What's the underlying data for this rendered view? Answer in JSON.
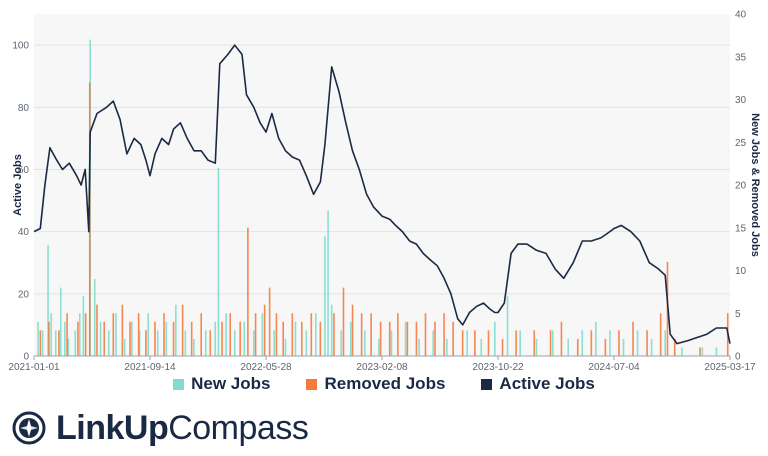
{
  "chart_data": {
    "type": "bar+line",
    "x_range": [
      "2021-01-01",
      "2025-03-17"
    ],
    "x_tick_labels": [
      "2021-01-01",
      "2021-09-14",
      "2022-05-28",
      "2023-02-08",
      "2023-10-22",
      "2024-07-04",
      "2025-03-17"
    ],
    "y_left": {
      "label": "Active Jobs",
      "ylim": [
        0,
        110
      ],
      "ticks": [
        0,
        20,
        40,
        60,
        80,
        100
      ]
    },
    "y_right": {
      "label": "New Jobs & Removed Jobs",
      "ylim": [
        0,
        40
      ],
      "ticks": [
        0,
        5,
        10,
        15,
        20,
        25,
        30,
        35,
        40
      ]
    },
    "grid": true,
    "legend_position": "bottom",
    "colors": {
      "new": "#7fdcce",
      "removed": "#f47a3d",
      "active": "#1b2a44",
      "grid": "#e3e3e3",
      "background": "#f7f7f7"
    },
    "series": [
      {
        "name": "Active Jobs",
        "kind": "line",
        "axis": "left",
        "points": [
          [
            "2021-01-01",
            40
          ],
          [
            "2021-01-15",
            41
          ],
          [
            "2021-01-25",
            55
          ],
          [
            "2021-02-05",
            67
          ],
          [
            "2021-02-20",
            63
          ],
          [
            "2021-03-05",
            60
          ],
          [
            "2021-03-20",
            62
          ],
          [
            "2021-04-05",
            58
          ],
          [
            "2021-04-15",
            55
          ],
          [
            "2021-04-24",
            60
          ],
          [
            "2021-05-02",
            40
          ],
          [
            "2021-05-05",
            72
          ],
          [
            "2021-05-20",
            78
          ],
          [
            "2021-06-10",
            80
          ],
          [
            "2021-06-25",
            82
          ],
          [
            "2021-07-10",
            76
          ],
          [
            "2021-07-25",
            65
          ],
          [
            "2021-08-10",
            70
          ],
          [
            "2021-08-25",
            68
          ],
          [
            "2021-09-05",
            63
          ],
          [
            "2021-09-14",
            58
          ],
          [
            "2021-09-25",
            65
          ],
          [
            "2021-10-10",
            70
          ],
          [
            "2021-10-25",
            68
          ],
          [
            "2021-11-05",
            73
          ],
          [
            "2021-11-20",
            75
          ],
          [
            "2021-12-05",
            70
          ],
          [
            "2021-12-20",
            66
          ],
          [
            "2022-01-05",
            66
          ],
          [
            "2022-01-20",
            63
          ],
          [
            "2022-02-05",
            62
          ],
          [
            "2022-02-15",
            94
          ],
          [
            "2022-03-05",
            97
          ],
          [
            "2022-03-20",
            100
          ],
          [
            "2022-04-05",
            97
          ],
          [
            "2022-04-15",
            84
          ],
          [
            "2022-05-01",
            80
          ],
          [
            "2022-05-15",
            75
          ],
          [
            "2022-05-28",
            72
          ],
          [
            "2022-06-10",
            78
          ],
          [
            "2022-06-25",
            70
          ],
          [
            "2022-07-10",
            66
          ],
          [
            "2022-07-25",
            64
          ],
          [
            "2022-08-10",
            63
          ],
          [
            "2022-08-25",
            58
          ],
          [
            "2022-09-10",
            52
          ],
          [
            "2022-09-25",
            56
          ],
          [
            "2022-10-05",
            68
          ],
          [
            "2022-10-20",
            93
          ],
          [
            "2022-11-05",
            85
          ],
          [
            "2022-11-20",
            75
          ],
          [
            "2022-12-05",
            66
          ],
          [
            "2022-12-20",
            60
          ],
          [
            "2023-01-05",
            52
          ],
          [
            "2023-01-20",
            48
          ],
          [
            "2023-02-08",
            45
          ],
          [
            "2023-02-25",
            44
          ],
          [
            "2023-03-10",
            42
          ],
          [
            "2023-03-25",
            40
          ],
          [
            "2023-04-10",
            37
          ],
          [
            "2023-04-25",
            36
          ],
          [
            "2023-05-10",
            33
          ],
          [
            "2023-05-25",
            31
          ],
          [
            "2023-06-10",
            29
          ],
          [
            "2023-06-25",
            25
          ],
          [
            "2023-07-10",
            20
          ],
          [
            "2023-07-25",
            12
          ],
          [
            "2023-08-05",
            10
          ],
          [
            "2023-08-20",
            14
          ],
          [
            "2023-09-05",
            16
          ],
          [
            "2023-09-20",
            17
          ],
          [
            "2023-10-05",
            15
          ],
          [
            "2023-10-15",
            14
          ],
          [
            "2023-10-22",
            14
          ],
          [
            "2023-11-05",
            17
          ],
          [
            "2023-11-20",
            33
          ],
          [
            "2023-12-05",
            36
          ],
          [
            "2023-12-25",
            36
          ],
          [
            "2024-01-15",
            34
          ],
          [
            "2024-02-05",
            33
          ],
          [
            "2024-02-25",
            28
          ],
          [
            "2024-03-15",
            25
          ],
          [
            "2024-04-05",
            30
          ],
          [
            "2024-04-25",
            37
          ],
          [
            "2024-05-15",
            37
          ],
          [
            "2024-06-05",
            38
          ],
          [
            "2024-06-25",
            40
          ],
          [
            "2024-07-04",
            41
          ],
          [
            "2024-07-20",
            42
          ],
          [
            "2024-08-10",
            40
          ],
          [
            "2024-08-30",
            37
          ],
          [
            "2024-09-20",
            30
          ],
          [
            "2024-10-10",
            28
          ],
          [
            "2024-10-25",
            26
          ],
          [
            "2024-11-05",
            7
          ],
          [
            "2024-11-20",
            4
          ],
          [
            "2024-12-15",
            5
          ],
          [
            "2025-01-05",
            6
          ],
          [
            "2025-01-25",
            7
          ],
          [
            "2025-02-15",
            9
          ],
          [
            "2025-03-10",
            9
          ],
          [
            "2025-03-17",
            4
          ]
        ]
      },
      {
        "name": "New Jobs",
        "kind": "bar",
        "axis": "right",
        "points": [
          [
            "2021-01-10",
            4
          ],
          [
            "2021-01-20",
            3
          ],
          [
            "2021-02-01",
            13
          ],
          [
            "2021-02-08",
            5
          ],
          [
            "2021-02-18",
            3
          ],
          [
            "2021-03-01",
            8
          ],
          [
            "2021-03-10",
            4
          ],
          [
            "2021-03-18",
            2
          ],
          [
            "2021-04-02",
            3
          ],
          [
            "2021-04-12",
            5
          ],
          [
            "2021-04-20",
            7
          ],
          [
            "2021-05-05",
            37
          ],
          [
            "2021-05-15",
            9
          ],
          [
            "2021-05-28",
            4
          ],
          [
            "2021-06-15",
            3
          ],
          [
            "2021-07-01",
            5
          ],
          [
            "2021-07-20",
            2
          ],
          [
            "2021-08-05",
            4
          ],
          [
            "2021-08-22",
            3
          ],
          [
            "2021-09-10",
            5
          ],
          [
            "2021-10-01",
            3
          ],
          [
            "2021-10-20",
            4
          ],
          [
            "2021-11-10",
            6
          ],
          [
            "2021-12-01",
            3
          ],
          [
            "2021-12-20",
            2
          ],
          [
            "2022-01-15",
            3
          ],
          [
            "2022-02-05",
            4
          ],
          [
            "2022-02-12",
            22
          ],
          [
            "2022-03-01",
            5
          ],
          [
            "2022-03-20",
            3
          ],
          [
            "2022-04-10",
            4
          ],
          [
            "2022-05-01",
            3
          ],
          [
            "2022-05-20",
            5
          ],
          [
            "2022-06-15",
            3
          ],
          [
            "2022-07-10",
            2
          ],
          [
            "2022-08-01",
            4
          ],
          [
            "2022-08-25",
            3
          ],
          [
            "2022-09-15",
            5
          ],
          [
            "2022-10-05",
            14
          ],
          [
            "2022-10-12",
            17
          ],
          [
            "2022-10-20",
            6
          ],
          [
            "2022-11-10",
            3
          ],
          [
            "2022-12-01",
            4
          ],
          [
            "2023-01-01",
            3
          ],
          [
            "2023-02-01",
            2
          ],
          [
            "2023-03-01",
            3
          ],
          [
            "2023-04-01",
            4
          ],
          [
            "2023-05-01",
            2
          ],
          [
            "2023-06-01",
            3
          ],
          [
            "2023-07-01",
            2
          ],
          [
            "2023-08-15",
            3
          ],
          [
            "2023-09-15",
            2
          ],
          [
            "2023-10-15",
            4
          ],
          [
            "2023-11-12",
            7
          ],
          [
            "2023-12-10",
            3
          ],
          [
            "2024-01-15",
            2
          ],
          [
            "2024-02-20",
            3
          ],
          [
            "2024-03-25",
            2
          ],
          [
            "2024-04-25",
            3
          ],
          [
            "2024-05-25",
            4
          ],
          [
            "2024-06-25",
            3
          ],
          [
            "2024-07-25",
            2
          ],
          [
            "2024-08-25",
            3
          ],
          [
            "2024-09-25",
            2
          ],
          [
            "2024-10-25",
            3
          ],
          [
            "2024-12-01",
            1
          ],
          [
            "2025-01-15",
            1
          ],
          [
            "2025-02-15",
            1
          ]
        ]
      },
      {
        "name": "Removed Jobs",
        "kind": "bar",
        "axis": "right",
        "points": [
          [
            "2021-01-15",
            3
          ],
          [
            "2021-02-03",
            4
          ],
          [
            "2021-02-25",
            3
          ],
          [
            "2021-03-15",
            5
          ],
          [
            "2021-04-08",
            4
          ],
          [
            "2021-04-25",
            5
          ],
          [
            "2021-05-04",
            32
          ],
          [
            "2021-05-20",
            6
          ],
          [
            "2021-06-05",
            4
          ],
          [
            "2021-06-25",
            5
          ],
          [
            "2021-07-15",
            6
          ],
          [
            "2021-08-01",
            4
          ],
          [
            "2021-08-20",
            5
          ],
          [
            "2021-09-05",
            3
          ],
          [
            "2021-09-25",
            4
          ],
          [
            "2021-10-15",
            5
          ],
          [
            "2021-11-05",
            4
          ],
          [
            "2021-11-25",
            6
          ],
          [
            "2021-12-15",
            4
          ],
          [
            "2022-01-05",
            5
          ],
          [
            "2022-01-25",
            3
          ],
          [
            "2022-02-20",
            4
          ],
          [
            "2022-03-10",
            5
          ],
          [
            "2022-04-01",
            4
          ],
          [
            "2022-04-18",
            15
          ],
          [
            "2022-05-05",
            5
          ],
          [
            "2022-05-25",
            6
          ],
          [
            "2022-06-05",
            8
          ],
          [
            "2022-06-20",
            5
          ],
          [
            "2022-07-05",
            4
          ],
          [
            "2022-07-25",
            5
          ],
          [
            "2022-08-15",
            4
          ],
          [
            "2022-09-05",
            5
          ],
          [
            "2022-09-25",
            4
          ],
          [
            "2022-10-25",
            5
          ],
          [
            "2022-11-15",
            8
          ],
          [
            "2022-12-05",
            6
          ],
          [
            "2022-12-25",
            5
          ],
          [
            "2023-01-15",
            5
          ],
          [
            "2023-02-05",
            4
          ],
          [
            "2023-02-25",
            4
          ],
          [
            "2023-03-15",
            5
          ],
          [
            "2023-04-05",
            4
          ],
          [
            "2023-04-25",
            4
          ],
          [
            "2023-05-15",
            5
          ],
          [
            "2023-06-05",
            4
          ],
          [
            "2023-06-25",
            5
          ],
          [
            "2023-07-15",
            4
          ],
          [
            "2023-08-05",
            3
          ],
          [
            "2023-09-01",
            3
          ],
          [
            "2023-10-01",
            3
          ],
          [
            "2023-11-01",
            2
          ],
          [
            "2023-12-01",
            3
          ],
          [
            "2024-01-10",
            3
          ],
          [
            "2024-02-15",
            3
          ],
          [
            "2024-03-10",
            4
          ],
          [
            "2024-04-15",
            2
          ],
          [
            "2024-05-15",
            3
          ],
          [
            "2024-06-15",
            2
          ],
          [
            "2024-07-15",
            3
          ],
          [
            "2024-08-15",
            4
          ],
          [
            "2024-09-15",
            3
          ],
          [
            "2024-10-15",
            5
          ],
          [
            "2024-10-30",
            11
          ],
          [
            "2024-11-15",
            2
          ],
          [
            "2025-01-10",
            1
          ],
          [
            "2025-03-12",
            5
          ]
        ]
      }
    ]
  },
  "legend": [
    {
      "label": "New Jobs",
      "color": "#7fdcce"
    },
    {
      "label": "Removed Jobs",
      "color": "#f47a3d"
    },
    {
      "label": "Active Jobs",
      "color": "#1b2a44"
    }
  ],
  "brand": {
    "name_bold": "LinkUp",
    "name_light": "Compass",
    "icon": "compass-logo-icon"
  }
}
